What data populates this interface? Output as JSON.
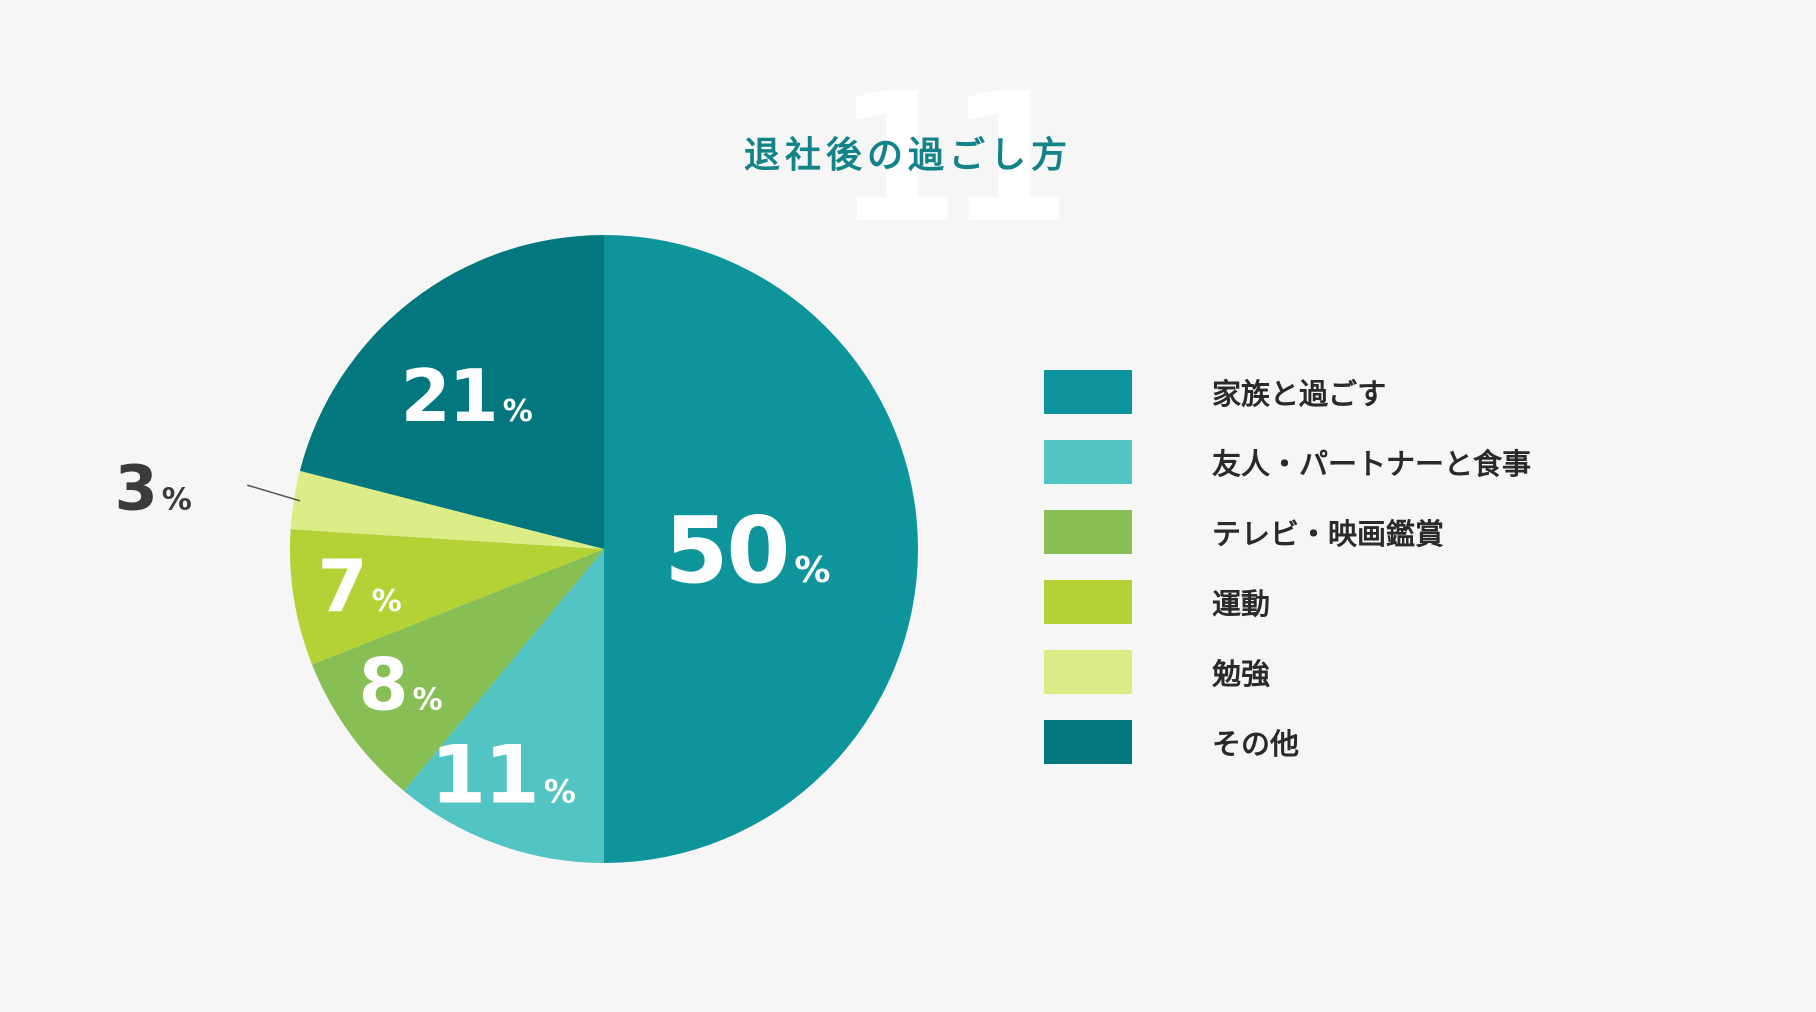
{
  "header": {
    "number": "11",
    "title": "退社後の過ごし方"
  },
  "chart_data": {
    "type": "pie",
    "title": "退社後の過ごし方",
    "unit": "%",
    "slices": [
      {
        "label": "家族と過ごす",
        "value": 50,
        "display": "50",
        "color": "#0e959c"
      },
      {
        "label": "友人・パートナーと食事",
        "value": 11,
        "display": "11",
        "color": "#52c4c4"
      },
      {
        "label": "テレビ・映画鑑賞",
        "value": 8,
        "display": "8",
        "color": "#87bf55"
      },
      {
        "label": "運動",
        "value": 7,
        "display": "7",
        "color": "#b4d236"
      },
      {
        "label": "勉強",
        "value": 3,
        "display": "3",
        "color": "#dcec86"
      },
      {
        "label": "その他",
        "value": 21,
        "display": "21",
        "color": "#02777d"
      }
    ],
    "start_angle": "12 o'clock",
    "direction": "clockwise",
    "legend_position": "right"
  }
}
